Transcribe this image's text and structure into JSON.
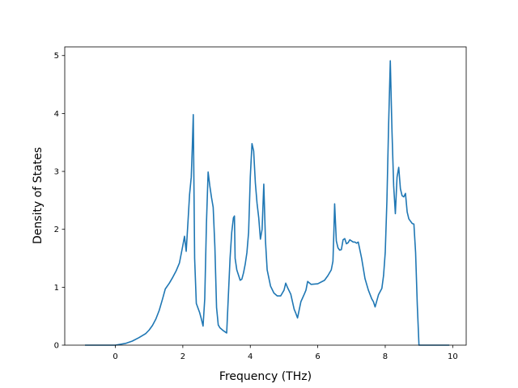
{
  "chart_data": {
    "type": "line",
    "title": "",
    "xlabel": "Frequency (THz)",
    "ylabel": "Density of States",
    "xlim": [
      -1.5,
      10.4
    ],
    "ylim": [
      0,
      5.15
    ],
    "xticks": [
      "0",
      "2",
      "4",
      "6",
      "8",
      "10"
    ],
    "yticks": [
      "0",
      "1",
      "2",
      "3",
      "4",
      "5"
    ],
    "grid": false,
    "line_color": "#1f77b4",
    "series": [
      {
        "x": [
          -0.9,
          -0.5,
          0.0,
          0.3,
          0.5,
          0.7,
          0.9,
          1.0,
          1.1,
          1.2,
          1.3,
          1.4,
          1.48,
          1.6,
          1.7,
          1.8,
          1.9,
          2.0,
          2.05,
          2.1,
          2.15,
          2.2,
          2.25,
          2.28,
          2.31,
          2.35,
          2.4,
          2.5,
          2.55,
          2.6,
          2.65,
          2.7,
          2.75,
          2.8,
          2.85,
          2.9,
          2.95,
          3.0,
          3.05,
          3.1,
          3.2,
          3.3,
          3.4,
          3.45,
          3.5,
          3.53,
          3.55,
          3.6,
          3.7,
          3.75,
          3.8,
          3.85,
          3.9,
          3.95,
          4.0,
          4.05,
          4.1,
          4.15,
          4.2,
          4.25,
          4.3,
          4.35,
          4.4,
          4.45,
          4.5,
          4.6,
          4.7,
          4.8,
          4.9,
          5.0,
          5.05,
          5.1,
          5.2,
          5.3,
          5.35,
          5.4,
          5.5,
          5.6,
          5.65,
          5.7,
          5.8,
          6.0,
          6.2,
          6.3,
          6.4,
          6.45,
          6.48,
          6.5,
          6.55,
          6.6,
          6.65,
          6.7,
          6.75,
          6.8,
          6.85,
          6.9,
          6.95,
          7.0,
          7.05,
          7.1,
          7.15,
          7.2,
          7.3,
          7.4,
          7.5,
          7.6,
          7.65,
          7.7,
          7.8,
          7.9,
          7.95,
          8.0,
          8.05,
          8.1,
          8.15,
          8.2,
          8.25,
          8.3,
          8.35,
          8.4,
          8.45,
          8.5,
          8.55,
          8.6,
          8.65,
          8.7,
          8.8,
          8.85,
          8.9,
          8.95,
          9.0,
          9.05,
          9.5,
          9.9
        ],
        "values": [
          0.0,
          0.0,
          0.0,
          0.03,
          0.07,
          0.13,
          0.2,
          0.26,
          0.34,
          0.45,
          0.6,
          0.8,
          0.97,
          1.07,
          1.17,
          1.28,
          1.42,
          1.72,
          1.88,
          1.62,
          2.1,
          2.6,
          2.9,
          3.4,
          3.98,
          1.5,
          0.72,
          0.56,
          0.45,
          0.33,
          0.8,
          2.1,
          2.99,
          2.75,
          2.55,
          2.38,
          1.7,
          0.65,
          0.35,
          0.3,
          0.25,
          0.21,
          1.5,
          1.95,
          2.2,
          2.23,
          1.5,
          1.3,
          1.12,
          1.14,
          1.25,
          1.4,
          1.6,
          1.95,
          2.9,
          3.48,
          3.35,
          2.8,
          2.45,
          2.2,
          1.83,
          2.0,
          2.78,
          1.8,
          1.3,
          1.02,
          0.9,
          0.85,
          0.85,
          0.95,
          1.07,
          1.0,
          0.88,
          0.62,
          0.55,
          0.47,
          0.75,
          0.88,
          0.95,
          1.1,
          1.05,
          1.06,
          1.12,
          1.2,
          1.3,
          1.45,
          2.0,
          2.44,
          1.8,
          1.68,
          1.64,
          1.65,
          1.82,
          1.84,
          1.75,
          1.77,
          1.82,
          1.8,
          1.78,
          1.78,
          1.76,
          1.78,
          1.5,
          1.15,
          0.95,
          0.8,
          0.75,
          0.66,
          0.87,
          0.98,
          1.2,
          1.6,
          2.5,
          3.8,
          4.91,
          3.7,
          2.75,
          2.27,
          2.9,
          3.07,
          2.7,
          2.58,
          2.56,
          2.62,
          2.3,
          2.18,
          2.1,
          2.09,
          1.6,
          0.7,
          0.0,
          0.0,
          0.0,
          0.0
        ]
      }
    ]
  }
}
